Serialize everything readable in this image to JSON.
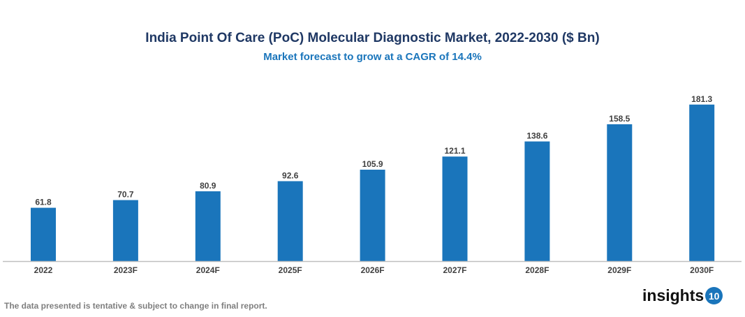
{
  "chart_data": {
    "type": "bar",
    "title": "India Point Of Care (PoC) Molecular Diagnostic Market, 2022-2030 ($ Bn)",
    "subtitle": "Market forecast to grow at a CAGR of 14.4%",
    "categories": [
      "2022",
      "2023F",
      "2024F",
      "2025F",
      "2026F",
      "2027F",
      "2028F",
      "2029F",
      "2030F"
    ],
    "values": [
      61.8,
      70.7,
      80.9,
      92.6,
      105.9,
      121.1,
      138.6,
      158.5,
      181.3
    ],
    "value_labels": [
      "61.8",
      "70.7",
      "80.9",
      "92.6",
      "105.9",
      "121.1",
      "138.6",
      "158.5",
      "181.3"
    ],
    "ylim": [
      0,
      190
    ],
    "grid": false,
    "bar_color": "#1a75bb"
  },
  "footer": {
    "note": "The data presented is tentative & subject to change in final report.",
    "logo_text": "insights",
    "logo_badge": "10"
  }
}
